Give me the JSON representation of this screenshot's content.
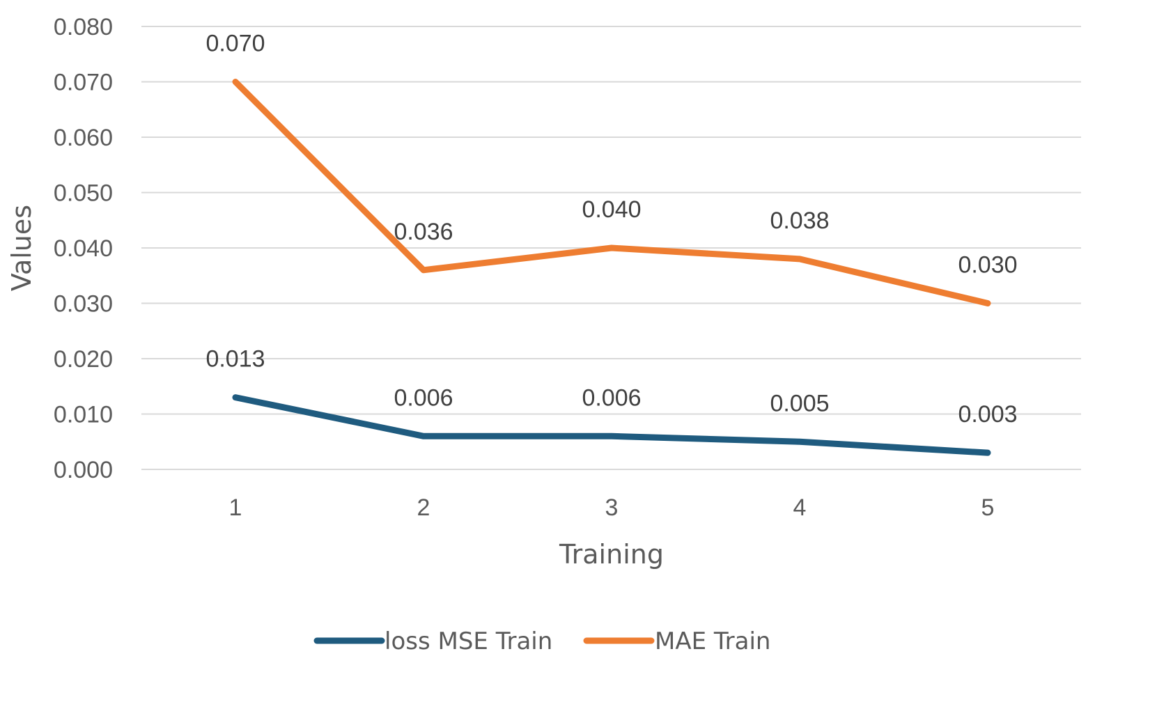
{
  "chart_data": {
    "type": "line",
    "title": "",
    "xlabel": "Training",
    "ylabel": "Values",
    "categories": [
      "1",
      "2",
      "3",
      "4",
      "5"
    ],
    "ylim": [
      0,
      0.08
    ],
    "yticks": [
      "0.000",
      "0.010",
      "0.020",
      "0.030",
      "0.040",
      "0.050",
      "0.060",
      "0.070",
      "0.080"
    ],
    "ytick_values": [
      0,
      0.01,
      0.02,
      0.03,
      0.04,
      0.05,
      0.06,
      0.07,
      0.08
    ],
    "grid": true,
    "legend_position": "bottom",
    "series": [
      {
        "name": "loss MSE Train",
        "color": "#1f5b7f",
        "values": [
          0.013,
          0.006,
          0.006,
          0.005,
          0.003
        ],
        "labels": [
          "0.013",
          "0.006",
          "0.006",
          "0.005",
          "0.003"
        ]
      },
      {
        "name": "MAE Train",
        "color": "#ee7d31",
        "values": [
          0.07,
          0.036,
          0.04,
          0.038,
          0.03
        ],
        "labels": [
          "0.070",
          "0.036",
          "0.040",
          "0.038",
          "0.030"
        ]
      }
    ]
  }
}
